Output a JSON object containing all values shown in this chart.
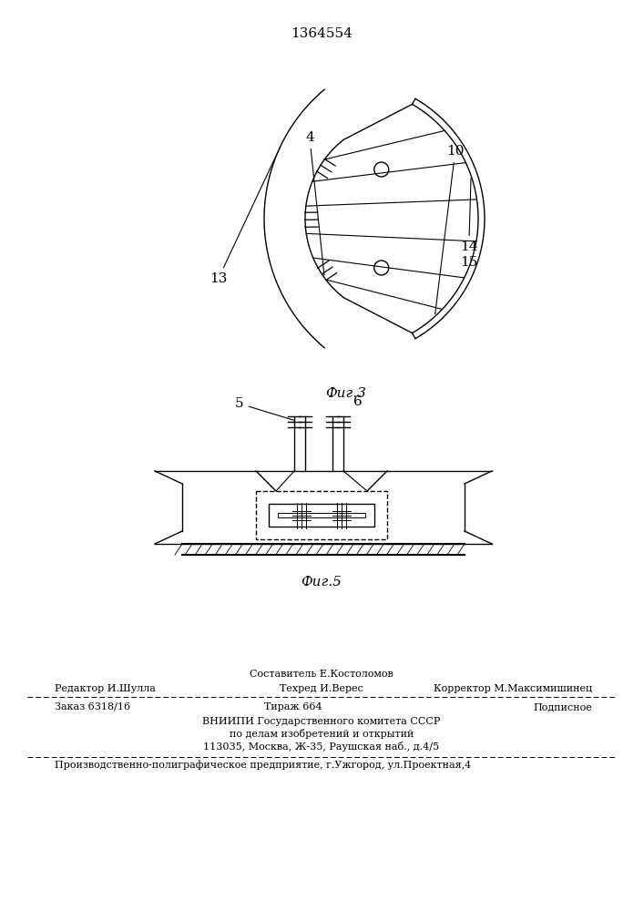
{
  "patent_number": "1364554",
  "fig3_label": "Фиг.3",
  "fig5_label": "Фиг.5",
  "bg_color": "#ffffff",
  "line_color": "#000000",
  "footer_editor": "Редактор И.Шулла",
  "footer_compiler": "Составитель Е.Костоломов",
  "footer_techred": "Техред И.Верес",
  "footer_corrector": "Корректор М.Максимишинец",
  "footer_order": "Заказ 6318/16",
  "footer_tirazh": "Тираж 664",
  "footer_podpisnoe": "Подписное",
  "footer_vniipi1": "ВНИИПИ Государственного комитета СССР",
  "footer_vniipi2": "по делам изобретений и открытий",
  "footer_vniipi3": "113035, Москва, Ж-35, Раушская наб., д.4/5",
  "footer_production": "Производственно-полиграфическое предприятие, г.Ужгород, ул.Проектная,4"
}
